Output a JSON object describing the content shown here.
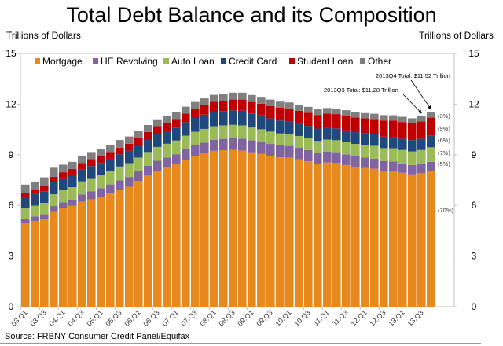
{
  "chart_data": {
    "type": "bar",
    "stacked": true,
    "title": "Total Debt Balance and its Composition",
    "ylabel_left": "Trillions of Dollars",
    "ylabel_right": "Trillions of Dollars",
    "ylim": [
      0,
      15
    ],
    "yticks": [
      0,
      3,
      6,
      9,
      12,
      15
    ],
    "grid": false,
    "legend_position": "top",
    "source": "Source: FRBNY Consumer Credit Panel/Equifax",
    "categories": [
      "03:Q1",
      "03:Q2",
      "03:Q3",
      "03:Q4",
      "04:Q1",
      "04:Q2",
      "04:Q3",
      "04:Q4",
      "05:Q1",
      "05:Q2",
      "05:Q3",
      "05:Q4",
      "06:Q1",
      "06:Q2",
      "06:Q3",
      "06:Q4",
      "07:Q1",
      "07:Q2",
      "07:Q3",
      "07:Q4",
      "08:Q1",
      "08:Q2",
      "08:Q3",
      "08:Q4",
      "09:Q1",
      "09:Q2",
      "09:Q3",
      "09:Q4",
      "10:Q1",
      "10:Q2",
      "10:Q3",
      "10:Q4",
      "11:Q1",
      "11:Q2",
      "11:Q3",
      "11:Q4",
      "12:Q1",
      "12:Q2",
      "12:Q3",
      "12:Q4",
      "13:Q1",
      "13:Q2",
      "13:Q3",
      "13:Q4"
    ],
    "xtick_labels": [
      "03:Q1",
      "03:Q3",
      "04:Q1",
      "04:Q3",
      "05:Q1",
      "05:Q3",
      "06:Q1",
      "06:Q3",
      "07:Q1",
      "07:Q3",
      "08:Q1",
      "08:Q3",
      "09:Q1",
      "09:Q3",
      "10:Q1",
      "10:Q3",
      "11:Q1",
      "11:Q3",
      "12:Q1",
      "12:Q3",
      "13:Q1",
      "13:Q3"
    ],
    "series": [
      {
        "name": "Mortgage",
        "color": "#E8891D",
        "values": [
          4.94,
          5.08,
          5.18,
          5.66,
          5.84,
          5.97,
          6.21,
          6.36,
          6.51,
          6.7,
          6.91,
          7.1,
          7.44,
          7.76,
          8.05,
          8.23,
          8.43,
          8.71,
          8.93,
          9.09,
          9.23,
          9.27,
          9.29,
          9.24,
          9.14,
          9.06,
          8.94,
          8.85,
          8.83,
          8.73,
          8.61,
          8.45,
          8.54,
          8.51,
          8.39,
          8.29,
          8.22,
          8.17,
          8.03,
          8.03,
          7.93,
          7.84,
          7.9,
          8.05
        ]
      },
      {
        "name": "HE Revolving",
        "color": "#8064A2",
        "values": [
          0.24,
          0.26,
          0.29,
          0.3,
          0.34,
          0.38,
          0.44,
          0.48,
          0.51,
          0.54,
          0.57,
          0.58,
          0.58,
          0.58,
          0.59,
          0.6,
          0.6,
          0.61,
          0.62,
          0.63,
          0.66,
          0.67,
          0.69,
          0.71,
          0.71,
          0.71,
          0.7,
          0.7,
          0.69,
          0.68,
          0.67,
          0.66,
          0.65,
          0.64,
          0.63,
          0.62,
          0.61,
          0.6,
          0.59,
          0.57,
          0.56,
          0.55,
          0.54,
          0.53
        ]
      },
      {
        "name": "Auto Loan",
        "color": "#9BBB59",
        "values": [
          0.64,
          0.64,
          0.68,
          0.7,
          0.72,
          0.73,
          0.77,
          0.77,
          0.78,
          0.8,
          0.82,
          0.82,
          0.81,
          0.82,
          0.82,
          0.82,
          0.81,
          0.81,
          0.81,
          0.81,
          0.8,
          0.8,
          0.79,
          0.79,
          0.76,
          0.74,
          0.73,
          0.71,
          0.71,
          0.7,
          0.7,
          0.71,
          0.71,
          0.71,
          0.72,
          0.73,
          0.75,
          0.76,
          0.77,
          0.78,
          0.79,
          0.81,
          0.84,
          0.86
        ]
      },
      {
        "name": "Credit Card",
        "color": "#1F497D",
        "values": [
          0.69,
          0.69,
          0.69,
          0.71,
          0.7,
          0.7,
          0.7,
          0.72,
          0.71,
          0.72,
          0.73,
          0.74,
          0.72,
          0.74,
          0.75,
          0.77,
          0.77,
          0.8,
          0.82,
          0.85,
          0.84,
          0.85,
          0.86,
          0.87,
          0.84,
          0.82,
          0.79,
          0.77,
          0.76,
          0.74,
          0.73,
          0.73,
          0.7,
          0.7,
          0.7,
          0.7,
          0.68,
          0.68,
          0.68,
          0.68,
          0.67,
          0.67,
          0.67,
          0.68
        ]
      },
      {
        "name": "Student Loan",
        "color": "#C00000",
        "values": [
          0.24,
          0.26,
          0.32,
          0.33,
          0.36,
          0.37,
          0.39,
          0.41,
          0.39,
          0.4,
          0.39,
          0.41,
          0.43,
          0.45,
          0.48,
          0.48,
          0.5,
          0.51,
          0.54,
          0.55,
          0.61,
          0.61,
          0.64,
          0.66,
          0.68,
          0.7,
          0.72,
          0.76,
          0.76,
          0.76,
          0.78,
          0.81,
          0.84,
          0.85,
          0.87,
          0.87,
          0.9,
          0.91,
          0.96,
          0.97,
          0.99,
          0.99,
          1.03,
          1.08
        ]
      },
      {
        "name": "Other",
        "color": "#7F7F7F",
        "values": [
          0.48,
          0.48,
          0.5,
          0.53,
          0.45,
          0.43,
          0.41,
          0.42,
          0.42,
          0.42,
          0.45,
          0.43,
          0.42,
          0.41,
          0.41,
          0.42,
          0.4,
          0.41,
          0.41,
          0.41,
          0.41,
          0.42,
          0.41,
          0.41,
          0.41,
          0.4,
          0.39,
          0.36,
          0.35,
          0.36,
          0.35,
          0.33,
          0.33,
          0.33,
          0.33,
          0.33,
          0.31,
          0.31,
          0.32,
          0.31,
          0.31,
          0.3,
          0.3,
          0.32
        ]
      }
    ],
    "annotations": [
      {
        "text": "2013Q4 Total: $11.52 Trillion",
        "category": "13:Q4",
        "value": 11.52
      },
      {
        "text": "2013Q3 Total: $11.28 Trillion",
        "category": "13:Q3",
        "value": 11.28
      }
    ],
    "share_labels": [
      {
        "series": "Other",
        "text": "(3%)"
      },
      {
        "series": "Student Loan",
        "text": "(9%)"
      },
      {
        "series": "Credit Card",
        "text": "(6%)"
      },
      {
        "series": "Auto Loan",
        "text": "(7%)"
      },
      {
        "series": "HE Revolving",
        "text": "(5%)"
      },
      {
        "series": "Mortgage",
        "text": "(70%)"
      }
    ]
  }
}
